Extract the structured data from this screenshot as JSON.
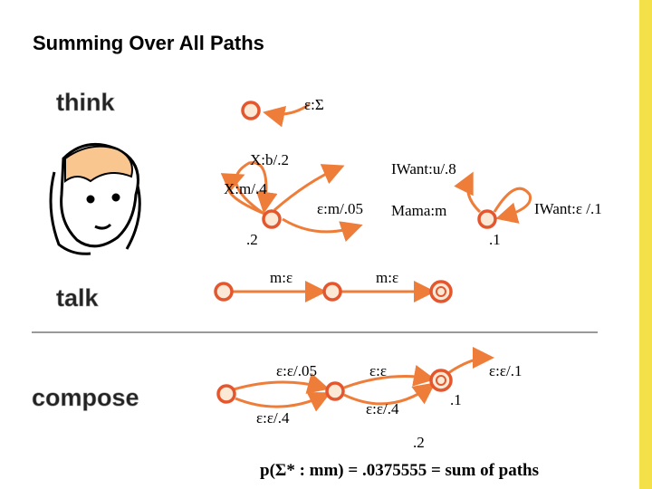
{
  "header": {
    "title": "Summing Over All Paths"
  },
  "sections": {
    "think": "think",
    "talk": "talk",
    "compose": "compose"
  },
  "sigma_machine": {
    "label": "ε:Σ"
  },
  "think_machine": {
    "labels": [
      "X:b/.2",
      "IWant:u/.8",
      "X:m/.4",
      "ε:m/.05",
      "Mama:m",
      "IWant:ε /.1"
    ],
    "node_weights": [
      ".2",
      ".1"
    ]
  },
  "talk_machine": {
    "labels": [
      "m:ε",
      "m:ε"
    ]
  },
  "compose_machine": {
    "labels": [
      "ε:ε/.05",
      "ε:ε",
      "ε:ε/.1",
      "ε:ε/.4",
      "ε:ε/.4"
    ],
    "node_weights": [
      ".1",
      ".2"
    ]
  },
  "footer": {
    "formula": "p(Σ* : mm) = .0375555 = sum of paths"
  }
}
